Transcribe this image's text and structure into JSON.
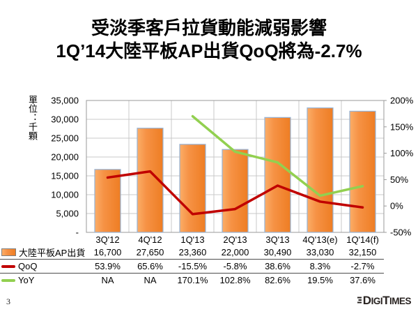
{
  "title": {
    "line1": "受淡季客戶拉貨動能減弱影響",
    "line2": "1Q’14大陸平板AP出貨QoQ將為-2.7%"
  },
  "unit_label": "單位：千顆",
  "footer": {
    "page_number": "3",
    "logo": {
      "d1": "D",
      "s1": "IGI",
      "d2": "T",
      "s2": "IMES"
    }
  },
  "colors": {
    "bar_fill_light": "#FBAD68",
    "bar_fill_mid": "#F69245",
    "bar_fill_dark": "#EE7D23",
    "bar_border": "#95B3D7",
    "qoq_line": "#C00000",
    "yoy_line": "#92D050",
    "gridline": "#C9C9C9",
    "plot_border": "#9A9A9A",
    "table_rule": "#4d4d4d",
    "text": "#000000"
  },
  "chart_data": {
    "type": "bar",
    "categories": [
      "3Q'12",
      "4Q'12",
      "1Q'13",
      "2Q'13",
      "3Q'13",
      "4Q'13(e)",
      "1Q'14(f)"
    ],
    "series": [
      {
        "name": "大陸平板AP出貨",
        "type": "bar",
        "axis": "left",
        "color": "#F69245",
        "values": [
          16700,
          27650,
          23360,
          22000,
          30490,
          33030,
          32150
        ],
        "display": [
          "16,700",
          "27,650",
          "23,360",
          "22,000",
          "30,490",
          "33,030",
          "32,150"
        ]
      },
      {
        "name": "QoQ",
        "type": "line",
        "axis": "right",
        "color": "#C00000",
        "values": [
          53.9,
          65.6,
          -15.5,
          -5.8,
          38.6,
          8.3,
          -2.7
        ],
        "display": [
          "53.9%",
          "65.6%",
          "-15.5%",
          "-5.8%",
          "38.6%",
          "8.3%",
          "-2.7%"
        ]
      },
      {
        "name": "YoY",
        "type": "line",
        "axis": "right",
        "color": "#92D050",
        "values": [
          null,
          null,
          170.1,
          102.8,
          82.6,
          19.5,
          37.6
        ],
        "display": [
          "NA",
          "NA",
          "170.1%",
          "102.8%",
          "82.6%",
          "19.5%",
          "37.6%"
        ]
      }
    ],
    "left_axis": {
      "min": 0,
      "max": 35000,
      "step": 5000,
      "tick_labels": [
        "-",
        "5,000",
        "10,000",
        "15,000",
        "20,000",
        "25,000",
        "30,000",
        "35,000"
      ],
      "title": "單位：千顆"
    },
    "right_axis": {
      "min": -50,
      "max": 200,
      "step": 50,
      "tick_labels": [
        "-50%",
        "0%",
        "50%",
        "100%",
        "150%",
        "200%"
      ]
    },
    "grid": true,
    "legend_position": "table-left"
  }
}
